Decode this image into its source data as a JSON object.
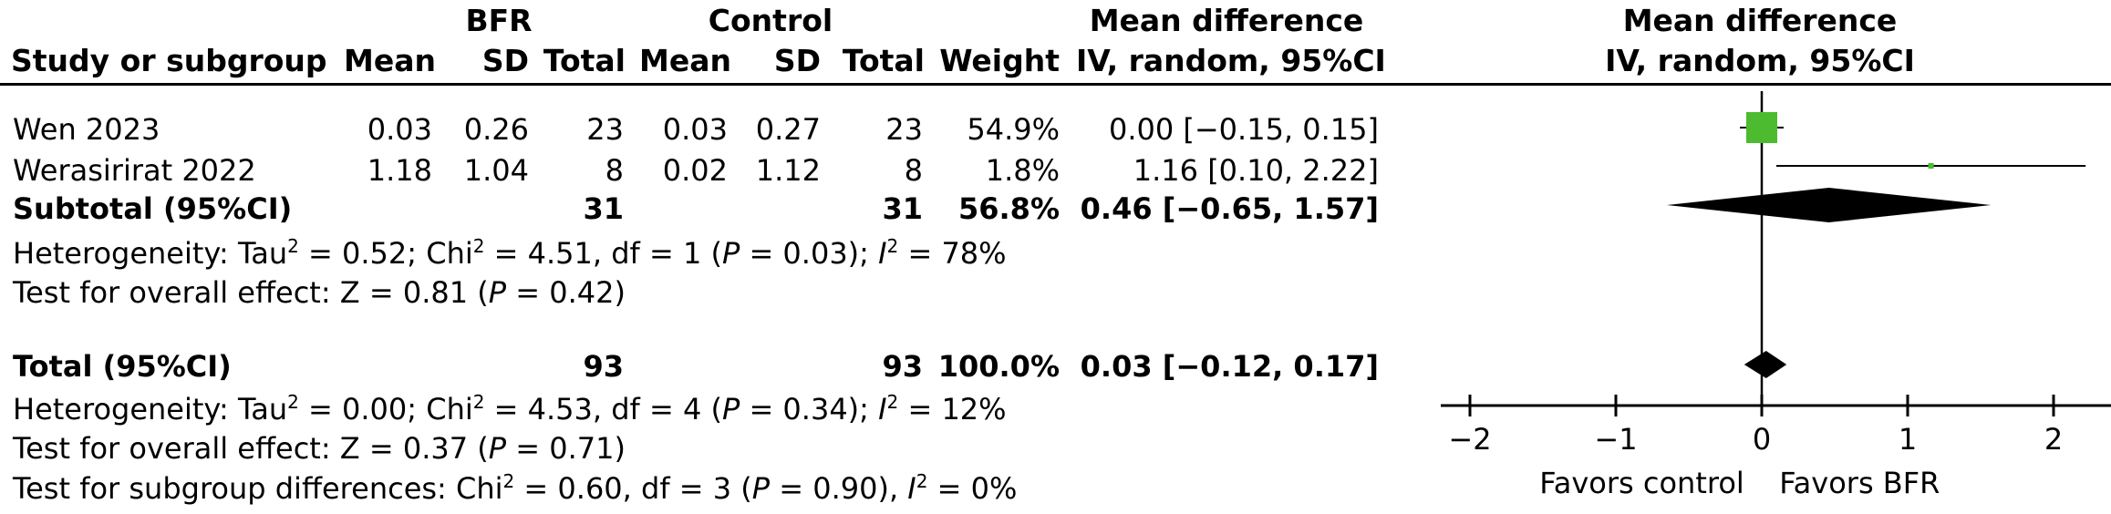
{
  "headers": {
    "bfr": "BFR",
    "control": "Control",
    "md_table_line1": "Mean difference",
    "md_table_line2": "IV, random, 95%CI",
    "md_plot_line1": "Mean difference",
    "md_plot_line2": "IV, random, 95%CI",
    "study": "Study or subgroup",
    "bfr_mean": "Mean",
    "bfr_sd": "SD",
    "bfr_total": "Total",
    "ctl_mean": "Mean",
    "ctl_sd": "SD",
    "ctl_total": "Total",
    "weight": "Weight"
  },
  "rows": [
    {
      "study": "Wen 2023",
      "bfr_mean": "0.03",
      "bfr_sd": "0.26",
      "bfr_total": "23",
      "ctl_mean": "0.03",
      "ctl_sd": "0.27",
      "ctl_total": "23",
      "weight": "54.9%",
      "md": "0.00 [−0.15, 0.15]"
    },
    {
      "study": "Werasirirat 2022",
      "bfr_mean": "1.18",
      "bfr_sd": "1.04",
      "bfr_total": "8",
      "ctl_mean": "0.02",
      "ctl_sd": "1.12",
      "ctl_total": "8",
      "weight": "1.8%",
      "md": "1.16 [0.10, 2.22]"
    }
  ],
  "subtotal": {
    "label": "Subtotal (95%CI)",
    "bfr_total": "31",
    "ctl_total": "31",
    "weight": "56.8%",
    "md": "0.46 [−0.65, 1.57]"
  },
  "subtotal_het": {
    "a": "Heterogeneity: Tau",
    "b": " = 0.52; Chi",
    "c": " = 4.51, df = 1 (",
    "p": "P",
    "d": " = 0.03); ",
    "i": "I",
    "e": " = 78%"
  },
  "subtotal_test": {
    "a": "Test for overall effect: Z = 0.81 (",
    "p": "P",
    "b": " = 0.42)"
  },
  "total": {
    "label": "Total (95%CI)",
    "bfr_total": "93",
    "ctl_total": "93",
    "weight": "100.0%",
    "md": "0.03 [−0.12, 0.17]"
  },
  "total_het": {
    "a": "Heterogeneity: Tau",
    "b": " = 0.00; Chi",
    "c": " = 4.53, df = 4 (",
    "p": "P",
    "d": " = 0.34); ",
    "i": "I",
    "e": " = 12%"
  },
  "total_test": {
    "a": "Test for overall effect: Z = 0.37 (",
    "p": "P",
    "b": " = 0.71)"
  },
  "subgroup_test": {
    "a": "Test for subgroup differences: Chi",
    "b": " = 0.60, df = 3 (",
    "p": "P",
    "c": " = 0.90), ",
    "i": "I",
    "d": " = 0%"
  },
  "sup2": "2",
  "chart_data": {
    "type": "forest",
    "xlim": [
      -2.2,
      2.4
    ],
    "ticks": [
      -2,
      -1,
      0,
      1,
      2
    ],
    "tick_labels": [
      "−2",
      "−1",
      "0",
      "1",
      "2"
    ],
    "favors_left": "Favors control",
    "favors_right": "Favors BFR",
    "study_color": "#4cbb2f",
    "diamond_color": "#000000",
    "studies": [
      {
        "name": "Wen 2023",
        "md": 0.0,
        "lo": -0.15,
        "hi": 0.15,
        "weight": 54.9
      },
      {
        "name": "Werasirirat 2022",
        "md": 1.16,
        "lo": 0.1,
        "hi": 2.22,
        "weight": 1.8
      }
    ],
    "diamonds": [
      {
        "name": "Subtotal (95%CI)",
        "md": 0.46,
        "lo": -0.65,
        "hi": 1.57
      },
      {
        "name": "Total (95%CI)",
        "md": 0.03,
        "lo": -0.12,
        "hi": 0.17
      }
    ]
  }
}
